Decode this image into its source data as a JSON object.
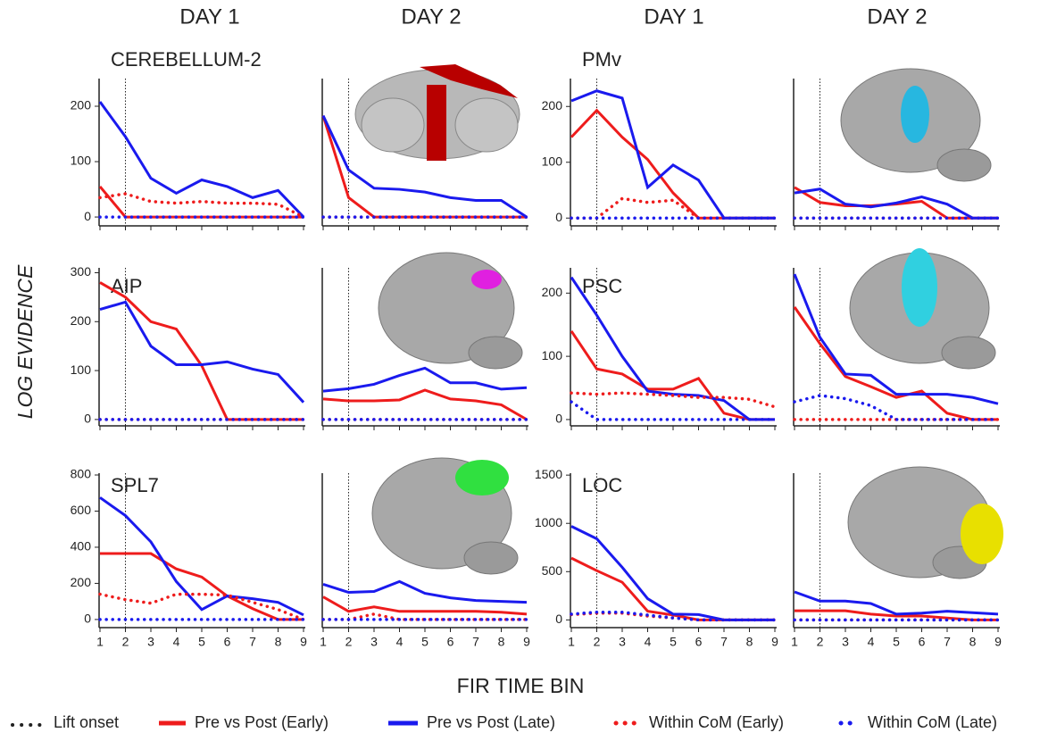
{
  "figure": {
    "column_titles": [
      "DAY 1",
      "DAY 2",
      "DAY 1",
      "DAY 2"
    ],
    "ylabel": "LOG EVIDENCE",
    "xlabel": "FIR TIME BIN",
    "lift_onset": {
      "label": "Lift onset",
      "x": 2
    },
    "legend": [
      {
        "name": "Pre vs Post (Early)",
        "color": "#ee1c1c",
        "style": "solid"
      },
      {
        "name": "Pre vs Post (Late)",
        "color": "#1a1aee",
        "style": "solid"
      },
      {
        "name": "Within CoM (Early)",
        "color": "#ee1c1c",
        "style": "dotted"
      },
      {
        "name": "Within CoM (Late)",
        "color": "#1a1aee",
        "style": "dotted"
      }
    ]
  },
  "chart_data": [
    {
      "type": "line",
      "title": "CEREBELLUM-2",
      "xlim": [
        1,
        9
      ],
      "xticks": [
        1,
        2,
        3,
        4,
        5,
        6,
        7,
        8,
        9
      ],
      "show_xtick_labels": false,
      "ylim": [
        -16,
        250
      ],
      "yticks": [
        0,
        100,
        200
      ],
      "series": [
        {
          "values": [
            55,
            0,
            0,
            0,
            0,
            0,
            0,
            0,
            0
          ]
        },
        {
          "values": [
            208,
            145,
            70,
            43,
            67,
            55,
            35,
            48,
            0
          ]
        },
        {
          "values": [
            35,
            42,
            28,
            25,
            28,
            25,
            25,
            23,
            0
          ]
        },
        {
          "values": [
            0,
            0,
            0,
            0,
            0,
            0,
            0,
            0,
            0
          ]
        }
      ]
    },
    {
      "type": "line",
      "xlim": [
        1,
        9
      ],
      "xticks": [
        1,
        2,
        3,
        4,
        5,
        6,
        7,
        8,
        9
      ],
      "show_xtick_labels": false,
      "ylim": [
        -16,
        250
      ],
      "series": [
        {
          "values": [
            183,
            35,
            0,
            0,
            0,
            0,
            0,
            0,
            0
          ]
        },
        {
          "values": [
            183,
            85,
            52,
            50,
            45,
            35,
            30,
            30,
            0
          ]
        },
        {
          "values": [
            0,
            0,
            0,
            0,
            0,
            0,
            0,
            0,
            0
          ]
        },
        {
          "values": [
            0,
            0,
            0,
            0,
            0,
            0,
            0,
            0,
            0
          ]
        }
      ]
    },
    {
      "type": "line",
      "title": "PMv",
      "xlim": [
        1,
        9
      ],
      "xticks": [
        1,
        2,
        3,
        4,
        5,
        6,
        7,
        8,
        9
      ],
      "show_xtick_labels": false,
      "ylim": [
        -14,
        250
      ],
      "yticks": [
        0,
        100,
        200
      ],
      "series": [
        {
          "values": [
            145,
            193,
            145,
            105,
            45,
            0,
            0,
            0,
            0
          ]
        },
        {
          "values": [
            210,
            228,
            215,
            55,
            95,
            68,
            0,
            0,
            0
          ]
        },
        {
          "values": [
            0,
            0,
            35,
            28,
            32,
            0,
            0,
            0,
            0
          ]
        },
        {
          "values": [
            0,
            0,
            0,
            0,
            0,
            0,
            0,
            0,
            0
          ]
        }
      ]
    },
    {
      "type": "line",
      "xlim": [
        1,
        9
      ],
      "xticks": [
        1,
        2,
        3,
        4,
        5,
        6,
        7,
        8,
        9
      ],
      "show_xtick_labels": false,
      "ylim": [
        -14,
        250
      ],
      "series": [
        {
          "values": [
            55,
            28,
            22,
            22,
            25,
            30,
            0,
            0,
            0
          ]
        },
        {
          "values": [
            45,
            52,
            25,
            20,
            27,
            38,
            25,
            0,
            0
          ]
        },
        {
          "values": [
            0,
            0,
            0,
            0,
            0,
            0,
            0,
            0,
            0
          ]
        },
        {
          "values": [
            0,
            0,
            0,
            0,
            0,
            0,
            0,
            0,
            0
          ]
        }
      ]
    },
    {
      "type": "line",
      "title": "AIP",
      "xlim": [
        1,
        9
      ],
      "xticks": [
        1,
        2,
        3,
        4,
        5,
        6,
        7,
        8,
        9
      ],
      "show_xtick_labels": false,
      "ylim": [
        -13,
        310
      ],
      "yticks": [
        0,
        100,
        200,
        300
      ],
      "series": [
        {
          "values": [
            280,
            250,
            200,
            185,
            110,
            0,
            0,
            0,
            0
          ]
        },
        {
          "values": [
            225,
            240,
            150,
            112,
            112,
            118,
            103,
            92,
            35
          ]
        },
        {
          "values": [
            0,
            0,
            0,
            0,
            0,
            0,
            0,
            0,
            0
          ]
        },
        {
          "values": [
            0,
            0,
            0,
            0,
            0,
            0,
            0,
            0,
            0
          ]
        }
      ]
    },
    {
      "type": "line",
      "xlim": [
        1,
        9
      ],
      "xticks": [
        1,
        2,
        3,
        4,
        5,
        6,
        7,
        8,
        9
      ],
      "show_xtick_labels": false,
      "ylim": [
        -13,
        310
      ],
      "series": [
        {
          "values": [
            42,
            38,
            38,
            40,
            60,
            42,
            38,
            30,
            0
          ]
        },
        {
          "values": [
            58,
            63,
            72,
            90,
            105,
            75,
            75,
            62,
            65
          ]
        },
        {
          "values": [
            0,
            0,
            0,
            0,
            0,
            0,
            0,
            0,
            0
          ]
        },
        {
          "values": [
            0,
            0,
            0,
            0,
            0,
            0,
            0,
            0,
            0
          ]
        }
      ]
    },
    {
      "type": "line",
      "title": "PSC",
      "xlim": [
        1,
        9
      ],
      "xticks": [
        1,
        2,
        3,
        4,
        5,
        6,
        7,
        8,
        9
      ],
      "show_xtick_labels": false,
      "ylim": [
        -10,
        240
      ],
      "yticks": [
        0,
        100,
        200
      ],
      "series": [
        {
          "values": [
            140,
            80,
            72,
            48,
            48,
            65,
            10,
            0,
            0
          ]
        },
        {
          "values": [
            225,
            165,
            100,
            45,
            40,
            38,
            30,
            0,
            0
          ]
        },
        {
          "values": [
            42,
            40,
            42,
            40,
            38,
            35,
            35,
            32,
            20
          ]
        },
        {
          "values": [
            28,
            0,
            0,
            0,
            0,
            0,
            0,
            0,
            0
          ]
        }
      ]
    },
    {
      "type": "line",
      "xlim": [
        1,
        9
      ],
      "xticks": [
        1,
        2,
        3,
        4,
        5,
        6,
        7,
        8,
        9
      ],
      "show_xtick_labels": false,
      "ylim": [
        -10,
        240
      ],
      "series": [
        {
          "values": [
            178,
            120,
            68,
            52,
            35,
            45,
            10,
            0,
            0
          ]
        },
        {
          "values": [
            230,
            130,
            72,
            70,
            40,
            40,
            40,
            35,
            25
          ]
        },
        {
          "values": [
            0,
            0,
            0,
            0,
            0,
            0,
            0,
            0,
            0
          ]
        },
        {
          "values": [
            28,
            38,
            33,
            22,
            0,
            0,
            0,
            0,
            0
          ]
        }
      ]
    },
    {
      "type": "line",
      "title": "SPL7",
      "xlim": [
        1,
        9
      ],
      "xticks": [
        1,
        2,
        3,
        4,
        5,
        6,
        7,
        8,
        9
      ],
      "show_xtick_labels": true,
      "ylim": [
        -45,
        810
      ],
      "yticks": [
        0,
        200,
        400,
        600,
        800
      ],
      "series": [
        {
          "values": [
            365,
            365,
            365,
            280,
            235,
            130,
            60,
            0,
            0
          ]
        },
        {
          "values": [
            675,
            575,
            430,
            210,
            55,
            130,
            115,
            95,
            25
          ]
        },
        {
          "values": [
            140,
            110,
            90,
            140,
            140,
            135,
            95,
            55,
            0
          ]
        },
        {
          "values": [
            0,
            0,
            0,
            0,
            0,
            0,
            0,
            0,
            0
          ]
        }
      ]
    },
    {
      "type": "line",
      "xlim": [
        1,
        9
      ],
      "xticks": [
        1,
        2,
        3,
        4,
        5,
        6,
        7,
        8,
        9
      ],
      "show_xtick_labels": true,
      "ylim": [
        -45,
        810
      ],
      "series": [
        {
          "values": [
            125,
            45,
            70,
            45,
            45,
            45,
            45,
            40,
            30
          ]
        },
        {
          "values": [
            195,
            150,
            155,
            210,
            145,
            120,
            105,
            100,
            95
          ]
        },
        {
          "values": [
            0,
            0,
            30,
            0,
            0,
            0,
            0,
            0,
            0
          ]
        },
        {
          "values": [
            0,
            0,
            0,
            0,
            0,
            0,
            0,
            0,
            0
          ]
        }
      ]
    },
    {
      "type": "line",
      "title": "LOC",
      "xlim": [
        1,
        9
      ],
      "xticks": [
        1,
        2,
        3,
        4,
        5,
        6,
        7,
        8,
        9
      ],
      "show_xtick_labels": true,
      "ylim": [
        -80,
        1520
      ],
      "yticks": [
        0,
        500,
        1000,
        1500
      ],
      "series": [
        {
          "values": [
            640,
            510,
            390,
            90,
            50,
            0,
            0,
            0,
            0
          ]
        },
        {
          "values": [
            970,
            840,
            545,
            220,
            60,
            55,
            0,
            0,
            0
          ]
        },
        {
          "values": [
            55,
            70,
            70,
            40,
            20,
            0,
            0,
            0,
            0
          ]
        },
        {
          "values": [
            60,
            80,
            80,
            50,
            20,
            0,
            0,
            0,
            0
          ]
        }
      ]
    },
    {
      "type": "line",
      "xlim": [
        1,
        9
      ],
      "xticks": [
        1,
        2,
        3,
        4,
        5,
        6,
        7,
        8,
        9
      ],
      "show_xtick_labels": true,
      "ylim": [
        -80,
        1520
      ],
      "series": [
        {
          "values": [
            95,
            95,
            95,
            60,
            40,
            40,
            20,
            0,
            0
          ]
        },
        {
          "values": [
            290,
            195,
            195,
            170,
            60,
            70,
            90,
            75,
            60
          ]
        },
        {
          "values": [
            0,
            0,
            0,
            0,
            0,
            0,
            0,
            0,
            0
          ]
        },
        {
          "values": [
            0,
            0,
            0,
            0,
            0,
            0,
            0,
            0,
            0
          ]
        }
      ]
    }
  ]
}
